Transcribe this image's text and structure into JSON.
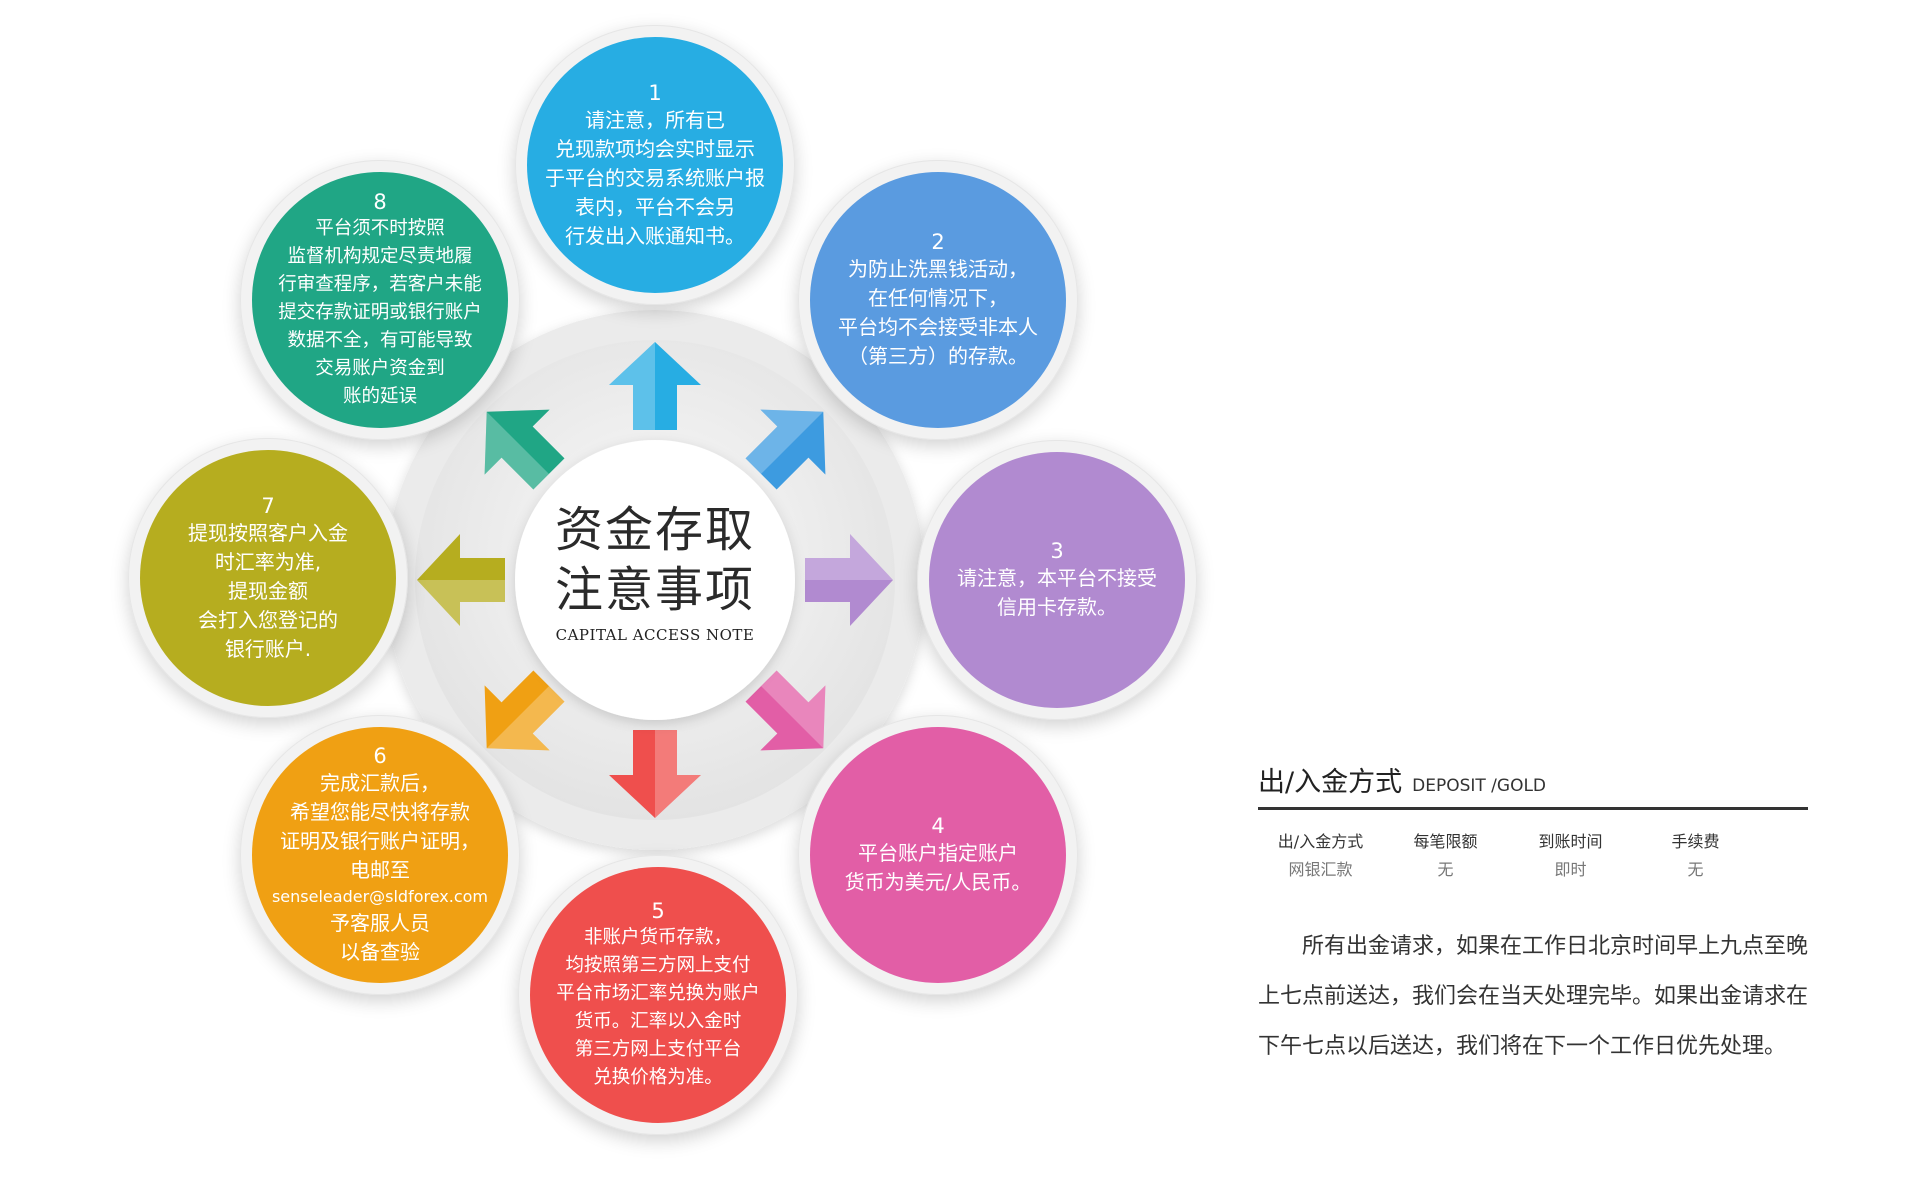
{
  "center": {
    "title_line1": "资金存取",
    "title_line2": "注意事项",
    "subtitle": "CAPITAL ACCESS NOTE"
  },
  "notes": [
    {
      "num": "1",
      "text": "请注意，所有已\n兑现款项均会实时显示\n于平台的交易系统账户报\n表内，平台不会另\n行发出入账通知书。",
      "color": "#27ade3"
    },
    {
      "num": "2",
      "text": "为防止洗黑钱活动，\n在任何情况下，\n平台均不会接受非本人\n（第三方）的存款。",
      "color": "#5a9be0"
    },
    {
      "num": "3",
      "text": "请注意，本平台不接受\n信用卡存款。",
      "color": "#b18ad0"
    },
    {
      "num": "4",
      "text": "平台账户指定账户\n货币为美元/人民币。",
      "color": "#e25ea6"
    },
    {
      "num": "5",
      "text": "非账户货币存款，\n均按照第三方网上支付\n平台市场汇率兑换为账户\n货币。汇率以入金时\n第三方网上支付平台\n兑换价格为准。",
      "color": "#ef4f4d"
    },
    {
      "num": "6",
      "text": "完成汇款后，\n希望您能尽快将存款\n证明及银行账户证明，\n电邮至",
      "email": "senseleader@sldforex.com",
      "text2": "予客服人员\n以备查验",
      "color": "#f0a013"
    },
    {
      "num": "7",
      "text": "提现按照客户入金\n时汇率为准,\n提现金额\n会打入您登记的\n银行账户.",
      "color": "#b6ad1f"
    },
    {
      "num": "8",
      "text": "平台须不时按照\n监督机构规定尽责地履\n行审查程序，若客户未能\n提交存款证明或银行账户\n数据不全，有可能导致\n交易账户资金到\n账的延误",
      "color": "#20a685"
    }
  ],
  "arrow_colors": [
    "#27ade3",
    "#3d9be0",
    "#b18ad0",
    "#e25ea6",
    "#ef4f4d",
    "#f0a013",
    "#b6ad1f",
    "#20a685"
  ],
  "info": {
    "title": "出/入金方式",
    "title_en": "DEPOSIT /GOLD",
    "headers": [
      "出/入金方式",
      "每笔限额",
      "到账时间",
      "手续费"
    ],
    "row": [
      "网银汇款",
      "无",
      "即时",
      "无"
    ],
    "paragraph": "所有出金请求，如果在工作日北京时间早上九点至晚上七点前送达，我们会在当天处理完毕。如果出金请求在下午七点以后送达，我们将在下一个工作日优先处理。"
  }
}
